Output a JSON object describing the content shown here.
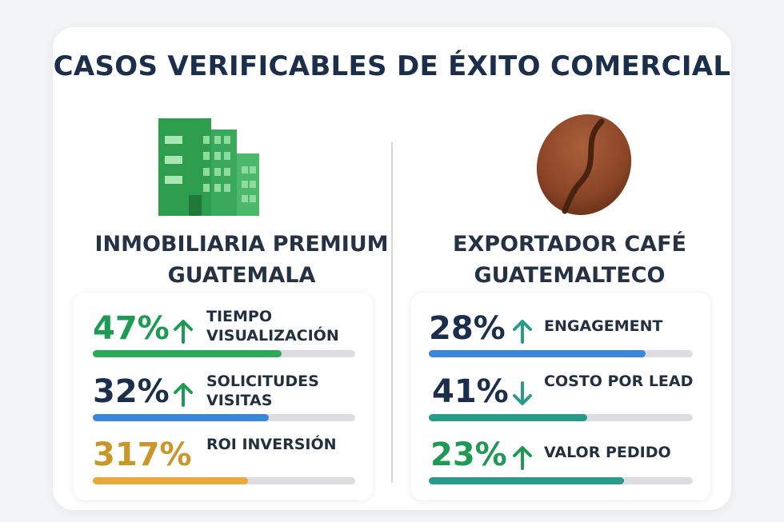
{
  "title": "CASOS VERIFICABLES DE ÉXITO COMERCIAL",
  "cases": [
    {
      "icon": "building-icon",
      "company": "INMOBILIARIA PREMIUM GUATEMALA",
      "metrics": [
        {
          "value": "47%",
          "label": "TIEMPO VISUALIZACIÓN",
          "trend": "up",
          "progress": 0.72,
          "value_color": "#1f9a55",
          "bar_color": "#2ea85a"
        },
        {
          "value": "32%",
          "label": "SOLICITUDES VISITAS",
          "trend": "up",
          "progress": 0.67,
          "value_color": "#1b2e4b",
          "bar_color": "#3a86d9"
        },
        {
          "value": "317%",
          "label": "ROI INVERSIÓN",
          "trend": "none",
          "progress": 0.59,
          "value_color": "#c9962a",
          "bar_color": "#eba83a"
        }
      ]
    },
    {
      "icon": "coffee-bean-icon",
      "company": "EXPORTADOR CAFÉ GUATEMALTECO",
      "metrics": [
        {
          "value": "28%",
          "label": "ENGAGEMENT",
          "trend": "up",
          "progress": 0.83,
          "value_color": "#1b2e4b",
          "bar_color": "#3a86d9"
        },
        {
          "value": "41%",
          "label": "COSTO POR LEAD",
          "trend": "down",
          "progress": 0.6,
          "value_color": "#1b2e4b",
          "bar_color": "#2a9a8c"
        },
        {
          "value": "23%",
          "label": "VALOR PEDIDO",
          "trend": "up",
          "progress": 0.74,
          "value_color": "#1f9a55",
          "bar_color": "#2a9a8c"
        }
      ]
    }
  ]
}
